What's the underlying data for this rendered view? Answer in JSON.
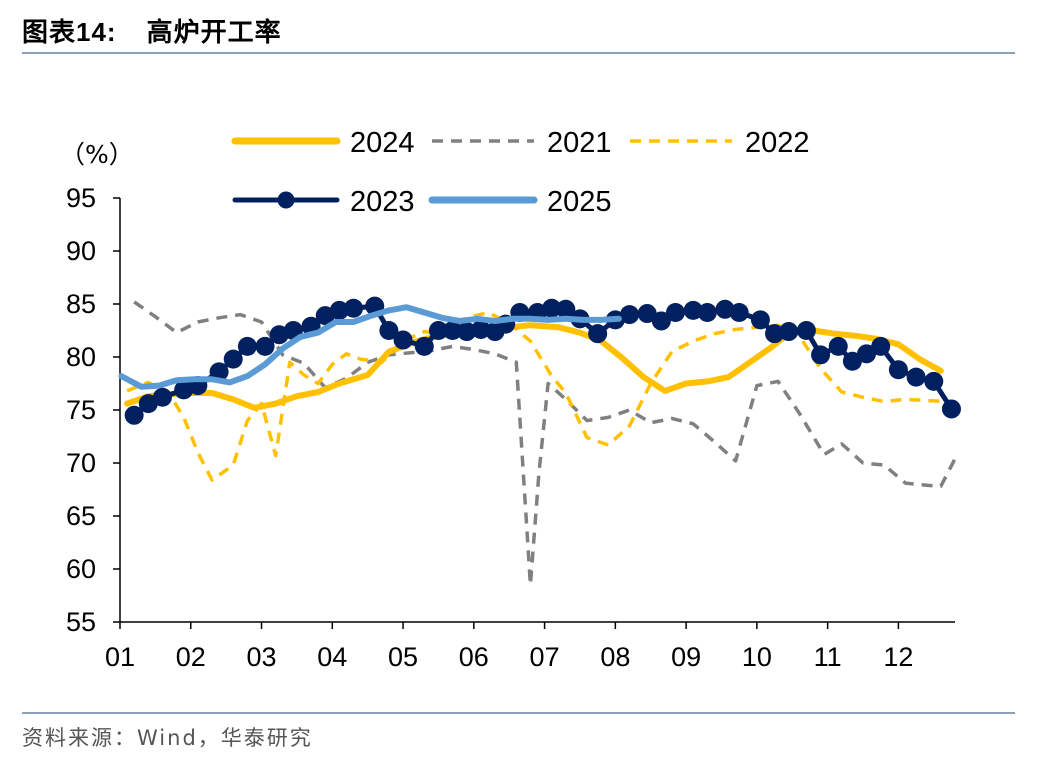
{
  "header": {
    "title_prefix": "图表",
    "title_number": "14:",
    "title_text": "高炉开工率"
  },
  "footer": {
    "source": "资料来源：Wind，华泰研究"
  },
  "chart_data": {
    "type": "line",
    "title": "高炉开工率",
    "ylabel": "（%）",
    "xlabel": "",
    "ylim": [
      55,
      95
    ],
    "yticks": [
      95,
      90,
      85,
      80,
      75,
      70,
      65,
      60,
      55
    ],
    "categories": [
      "01",
      "02",
      "03",
      "04",
      "05",
      "06",
      "07",
      "08",
      "09",
      "10",
      "11",
      "12"
    ],
    "xlim": [
      1,
      12.8
    ],
    "legend_position": "top",
    "grid": false,
    "series": [
      {
        "name": "2024",
        "color": "#FFC000",
        "style": "solid",
        "x": [
          1.1,
          1.4,
          1.7,
          2.0,
          2.3,
          2.6,
          2.9,
          3.2,
          3.5,
          3.8,
          4.1,
          4.5,
          4.8,
          5.2,
          5.5,
          5.8,
          6.1,
          6.5,
          6.8,
          7.2,
          7.5,
          7.8,
          8.1,
          8.4,
          8.7,
          9.0,
          9.3,
          9.6,
          9.9,
          10.2,
          10.5,
          10.8,
          11.1,
          11.4,
          11.7,
          12.0,
          12.3,
          12.6
        ],
        "y": [
          75.6,
          76.3,
          76.5,
          76.6,
          76.6,
          76.0,
          75.2,
          75.6,
          76.3,
          76.7,
          77.5,
          78.3,
          80.5,
          81.5,
          82.0,
          82.3,
          82.4,
          82.8,
          83.0,
          82.8,
          82.3,
          81.5,
          79.9,
          78.1,
          76.8,
          77.5,
          77.7,
          78.1,
          79.5,
          80.9,
          82.5,
          82.5,
          82.2,
          82.0,
          81.7,
          81.2,
          79.8,
          78.7
        ]
      },
      {
        "name": "2021",
        "color": "#808080",
        "style": "dash",
        "x": [
          1.2,
          1.5,
          1.8,
          2.1,
          2.4,
          2.7,
          3.0,
          3.3,
          3.6,
          3.9,
          4.2,
          4.5,
          4.8,
          5.1,
          5.4,
          5.7,
          6.0,
          6.3,
          6.6,
          6.8,
          6.92,
          7.05,
          7.3,
          7.6,
          7.9,
          8.2,
          8.5,
          8.8,
          9.1,
          9.4,
          9.7,
          10.0,
          10.3,
          10.6,
          10.95,
          11.2,
          11.5,
          11.8,
          12.1,
          12.4,
          12.6,
          12.8
        ],
        "y": [
          85.2,
          83.8,
          82.3,
          83.3,
          83.7,
          84.0,
          83.3,
          80.2,
          79.4,
          77.1,
          78.0,
          79.5,
          80.2,
          80.4,
          80.6,
          81.0,
          80.7,
          80.3,
          79.5,
          58.5,
          69.0,
          77.5,
          76.0,
          74.0,
          74.3,
          75.0,
          73.8,
          74.2,
          73.7,
          72.0,
          70.2,
          77.3,
          77.7,
          74.7,
          70.8,
          71.8,
          70.0,
          69.8,
          68.1,
          67.9,
          67.8,
          70.4
        ]
      },
      {
        "name": "2022",
        "color": "#FFC000",
        "style": "dash",
        "x": [
          1.1,
          1.4,
          1.7,
          1.9,
          2.1,
          2.3,
          2.6,
          2.8,
          3.0,
          3.2,
          3.4,
          3.6,
          3.8,
          4.0,
          4.2,
          4.4,
          4.7,
          5.0,
          5.3,
          5.6,
          5.9,
          6.2,
          6.5,
          6.8,
          7.1,
          7.3,
          7.6,
          7.9,
          8.2,
          8.5,
          8.8,
          9.1,
          9.4,
          9.7,
          10.0,
          10.3,
          10.6,
          10.9,
          11.2,
          11.5,
          11.8,
          12.1,
          12.4,
          12.7
        ],
        "y": [
          76.8,
          77.6,
          76.5,
          74.3,
          71.0,
          68.4,
          69.8,
          74.0,
          75.6,
          70.7,
          79.5,
          78.3,
          77.5,
          79.3,
          80.3,
          79.8,
          79.5,
          81.5,
          82.4,
          82.2,
          83.7,
          84.2,
          83.2,
          81.5,
          78.2,
          76.6,
          72.4,
          71.7,
          73.5,
          77.5,
          80.5,
          81.5,
          82.2,
          82.6,
          82.8,
          83.0,
          82.0,
          78.9,
          76.7,
          76.2,
          75.8,
          76.0,
          75.9,
          75.8
        ]
      },
      {
        "name": "2023",
        "color": "#002060",
        "style": "solid-marker",
        "x": [
          1.2,
          1.4,
          1.6,
          1.9,
          2.1,
          2.4,
          2.6,
          2.8,
          3.05,
          3.25,
          3.45,
          3.7,
          3.9,
          4.1,
          4.3,
          4.6,
          4.8,
          5.0,
          5.3,
          5.5,
          5.7,
          5.9,
          6.1,
          6.3,
          6.45,
          6.65,
          6.9,
          7.1,
          7.3,
          7.5,
          7.75,
          8.0,
          8.2,
          8.45,
          8.65,
          8.85,
          9.1,
          9.3,
          9.55,
          9.75,
          10.05,
          10.25,
          10.45,
          10.7,
          10.9,
          11.15,
          11.35,
          11.55,
          11.75,
          12.0,
          12.25,
          12.5,
          12.75
        ],
        "y": [
          74.5,
          75.6,
          76.2,
          76.9,
          77.3,
          78.6,
          79.8,
          81.0,
          81.0,
          82.1,
          82.5,
          82.9,
          83.9,
          84.4,
          84.6,
          84.8,
          82.5,
          81.6,
          81.0,
          82.5,
          82.5,
          82.4,
          82.6,
          82.4,
          83.1,
          84.2,
          84.2,
          84.6,
          84.5,
          83.6,
          82.2,
          83.5,
          84.0,
          84.1,
          83.4,
          84.2,
          84.4,
          84.2,
          84.5,
          84.2,
          83.5,
          82.2,
          82.4,
          82.5,
          80.2,
          81.0,
          79.6,
          80.3,
          81.0,
          78.8,
          78.1,
          77.7,
          75.1
        ]
      },
      {
        "name": "2025",
        "color": "#5B9BD5",
        "style": "solid",
        "x": [
          1.02,
          1.3,
          1.55,
          1.8,
          2.05,
          2.3,
          2.55,
          2.8,
          3.05,
          3.3,
          3.55,
          3.8,
          4.05,
          4.3,
          4.55,
          4.8,
          5.05,
          5.3,
          5.55,
          5.8,
          6.05,
          6.3,
          6.55,
          6.8,
          7.05,
          7.3,
          7.55,
          7.8,
          8.05
        ],
        "y": [
          78.2,
          77.2,
          77.3,
          77.8,
          77.9,
          77.9,
          77.6,
          78.2,
          79.3,
          80.8,
          81.9,
          82.3,
          83.3,
          83.3,
          83.9,
          84.4,
          84.7,
          84.2,
          83.7,
          83.4,
          83.6,
          83.4,
          83.6,
          83.6,
          83.5,
          83.6,
          83.5,
          83.5,
          83.6
        ]
      }
    ]
  }
}
